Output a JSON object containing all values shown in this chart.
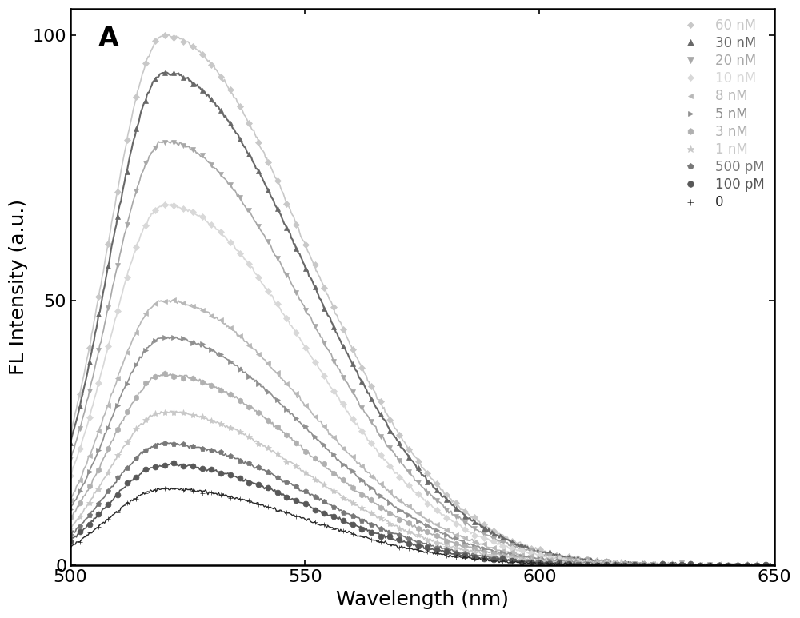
{
  "xlabel": "Wavelength (nm)",
  "ylabel": "FL Intensity (a.u.)",
  "xlim": [
    500,
    650
  ],
  "ylim": [
    0,
    105
  ],
  "xticks": [
    500,
    550,
    600,
    650
  ],
  "yticks": [
    0,
    50,
    100
  ],
  "panel_label": "A",
  "series": [
    {
      "label": "60 nM",
      "peak": 100.0,
      "color": "#c8c8c8",
      "marker": "D",
      "markersize": 4,
      "lw": 1.2,
      "sigma_l": 12.0,
      "sigma_r": 30.0
    },
    {
      "label": "30 nM",
      "peak": 93.0,
      "color": "#686868",
      "marker": "^",
      "markersize": 5,
      "lw": 1.5,
      "sigma_l": 12.0,
      "sigma_r": 30.0
    },
    {
      "label": "20 nM",
      "peak": 80.0,
      "color": "#a8a8a8",
      "marker": "v",
      "markersize": 5,
      "lw": 1.2,
      "sigma_l": 12.0,
      "sigma_r": 30.0
    },
    {
      "label": "10 nM",
      "peak": 68.0,
      "color": "#d8d8d8",
      "marker": "D",
      "markersize": 4,
      "lw": 1.2,
      "sigma_l": 12.0,
      "sigma_r": 30.0
    },
    {
      "label": "8 nM",
      "peak": 50.0,
      "color": "#b8b8b8",
      "marker": "<",
      "markersize": 4,
      "lw": 1.2,
      "sigma_l": 12.0,
      "sigma_r": 30.0
    },
    {
      "label": "5 nM",
      "peak": 43.0,
      "color": "#909090",
      "marker": ">",
      "markersize": 4,
      "lw": 1.2,
      "sigma_l": 12.0,
      "sigma_r": 30.0
    },
    {
      "label": "3 nM",
      "peak": 36.0,
      "color": "#b0b0b0",
      "marker": "h",
      "markersize": 5,
      "lw": 1.2,
      "sigma_l": 12.0,
      "sigma_r": 30.0
    },
    {
      "label": "1 nM",
      "peak": 29.0,
      "color": "#c8c8c8",
      "marker": "*",
      "markersize": 6,
      "lw": 1.2,
      "sigma_l": 12.0,
      "sigma_r": 30.0
    },
    {
      "label": "500 pM",
      "peak": 23.0,
      "color": "#787878",
      "marker": "p",
      "markersize": 5,
      "lw": 1.2,
      "sigma_l": 12.0,
      "sigma_r": 30.0
    },
    {
      "label": "100 pM",
      "peak": 19.0,
      "color": "#585858",
      "marker": "o",
      "markersize": 5,
      "lw": 1.2,
      "sigma_l": 12.0,
      "sigma_r": 30.0
    },
    {
      "label": "0",
      "peak": 14.5,
      "color": "#282828",
      "marker": "+",
      "markersize": 5,
      "lw": 1.0,
      "sigma_l": 12.0,
      "sigma_r": 30.0
    }
  ],
  "peak_wavelength": 520,
  "label_fontsize": 18,
  "tick_fontsize": 16,
  "legend_fontsize": 12,
  "marker_every": 8
}
